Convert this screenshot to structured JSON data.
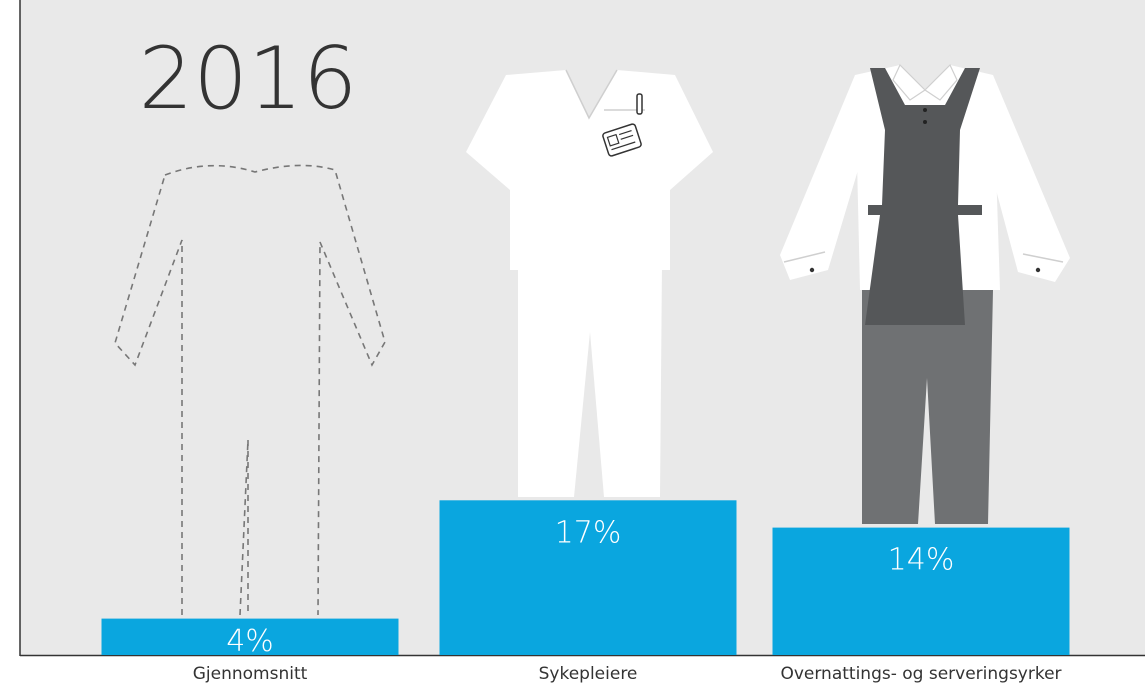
{
  "chart_data": {
    "type": "bar",
    "title": "2016",
    "categories": [
      "Gjennomsnitt",
      "Sykepleiere",
      "Overnattings- og serveringsyrker"
    ],
    "values": [
      4,
      17,
      14
    ],
    "value_labels": [
      "4%",
      "17%",
      "14%"
    ],
    "unit": "%",
    "ylim": [
      0,
      100
    ],
    "grid": false,
    "legend": "none"
  },
  "colors": {
    "background": "#e9e9e9",
    "bar": "#0aa6df",
    "bar_label": "#ffffff",
    "category_label": "#333333",
    "year": "#333333",
    "apron": "#555759",
    "trousers": "#6f7173"
  },
  "icons": [
    "dashed-outline-figure-icon",
    "nurse-uniform-icon",
    "waiter-uniform-icon"
  ]
}
